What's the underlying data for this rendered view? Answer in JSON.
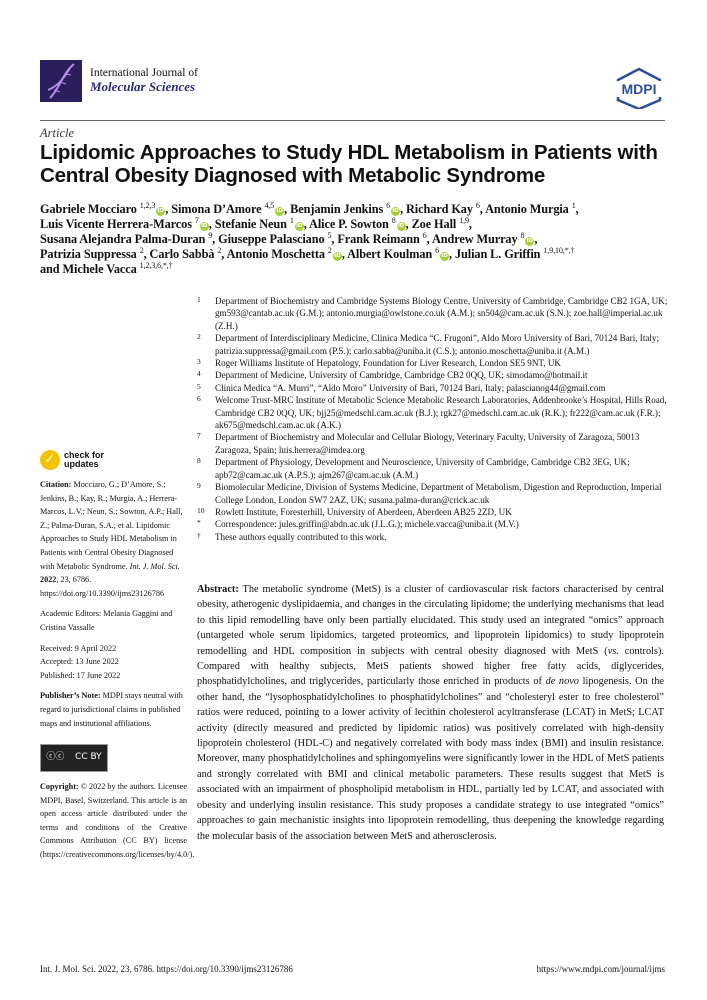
{
  "header": {
    "journal_line1": "International Journal of",
    "journal_line2": "Molecular Sciences",
    "publisher_logo": "MDPI",
    "brand_color": "#2a1f5c"
  },
  "article_type": "Article",
  "title": "Lipidomic Approaches to Study HDL Metabolism in Patients with Central Obesity Diagnosed with Metabolic Syndrome",
  "authors": [
    {
      "name": "Gabriele Mocciaro",
      "sup": "1,2,3",
      "orcid": true
    },
    {
      "name": "Simona D’Amore",
      "sup": "4,5",
      "orcid": true
    },
    {
      "name": "Benjamin Jenkins",
      "sup": "6",
      "orcid": true
    },
    {
      "name": "Richard Kay",
      "sup": "6",
      "orcid": false
    },
    {
      "name": "Antonio Murgia",
      "sup": "1",
      "orcid": false,
      "br": true
    },
    {
      "name": "Luis Vicente Herrera-Marcos",
      "sup": "7",
      "orcid": true
    },
    {
      "name": "Stefanie Neun",
      "sup": "1",
      "orcid": true
    },
    {
      "name": "Alice P. Sowton",
      "sup": "8",
      "orcid": true
    },
    {
      "name": "Zoe Hall",
      "sup": "1,9",
      "orcid": false,
      "br": true
    },
    {
      "name": "Susana Alejandra Palma-Duran",
      "sup": "9",
      "orcid": false
    },
    {
      "name": "Giuseppe Palasciano",
      "sup": "5",
      "orcid": false
    },
    {
      "name": "Frank Reimann",
      "sup": "6",
      "orcid": false
    },
    {
      "name": "Andrew Murray",
      "sup": "8",
      "orcid": true,
      "br": true
    },
    {
      "name": "Patrizia Suppressa",
      "sup": "2",
      "orcid": false
    },
    {
      "name": "Carlo Sabbà",
      "sup": "2",
      "orcid": false
    },
    {
      "name": "Antonio Moschetta",
      "sup": "2",
      "orcid": true
    },
    {
      "name": "Albert Koulman",
      "sup": "6",
      "orcid": true
    },
    {
      "name": "Julian L. Griffin",
      "sup": "1,9,10,*,†",
      "orcid": false,
      "br": true
    },
    {
      "name": "Michele Vacca",
      "sup": "1,2,3,6,*,†",
      "orcid": false,
      "last": true
    }
  ],
  "affiliations": [
    {
      "num": "1",
      "text": "Department of Biochemistry and Cambridge Systems Biology Centre, University of Cambridge, Cambridge CB2 1GA, UK; gm593@cantab.ac.uk (G.M.); antonio.murgia@owlstone.co.uk (A.M.); sn504@cam.ac.uk (S.N.); zoe.hall@imperial.ac.uk (Z.H.)"
    },
    {
      "num": "2",
      "text": "Department of Interdisciplinary Medicine, Clinica Medica “C. Frugoni”, Aldo Moro University of Bari, 70124 Bari, Italy; patrizia.suppressa@gmail.com (P.S.); carlo.sabba@uniba.it (C.S.); antonio.moschetta@uniba.it (A.M.)"
    },
    {
      "num": "3",
      "text": "Roger Williams Institute of Hepatology, Foundation for Liver Research, London SE5 9NT, UK"
    },
    {
      "num": "4",
      "text": "Department of Medicine, University of Cambridge, Cambridge CB2 0QQ, UK; simodamo@hotmail.it"
    },
    {
      "num": "5",
      "text": "Clinica Medica “A. Murri”, “Aldo Moro” University of Bari, 70124 Bari, Italy; palascianog44@gmail.com"
    },
    {
      "num": "6",
      "text": "Welcome Trust-MRC Institute of Metabolic Science Metabolic Research Laboratories, Addenbrooke’s Hospital, Hills Road, Cambridge CB2 0QQ, UK; bjj25@medschl.cam.ac.uk (B.J.); rgk27@medschl.cam.ac.uk (R.K.); fr222@cam.ac.uk (F.R.); ak675@medschl.cam.ac.uk (A.K.)"
    },
    {
      "num": "7",
      "text": "Department of Biochemistry and Molecular and Cellular Biology, Veterinary Faculty, University of Zaragoza, 50013 Zaragoza, Spain; luis.herrera@imdea.org"
    },
    {
      "num": "8",
      "text": "Department of Physiology, Development and Neuroscience, University of Cambridge, Cambridge CB2 3EG, UK; apb72@cam.ac.uk (A.P.S.); ajm267@cam.ac.uk (A.M.)"
    },
    {
      "num": "9",
      "text": "Biomolecular Medicine, Division of Systems Medicine, Department of Metabolism, Digestion and Reproduction, Imperial College London, London SW7 2AZ, UK; susana.palma-duran@crick.ac.uk"
    },
    {
      "num": "10",
      "text": "Rowlett Institute, Foresterhill, University of Aberdeen, Aberdeen AB25 2ZD, UK"
    },
    {
      "num": "*",
      "text": "Correspondence: jules.griffin@abdn.ac.uk (J.L.G.); michele.vacca@uniba.it (M.V.)"
    },
    {
      "num": "†",
      "text": "These authors equally contributed to this work."
    }
  ],
  "sidebar": {
    "check_updates": [
      "check for",
      "updates"
    ],
    "citation": [
      {
        "t": "Citation:",
        "b": true
      },
      {
        "t": " Mocciaro, G.; D’Amore, S.; Jenkins, B.; Kay, R.; Murgia, A.; Herrera-Marcos, L.V.; Neun, S.; Sowton, A.P.; Hall, Z.; Palma-Duran, S.A.; et al. Lipidomic Approaches to Study HDL Metabolism in Patients with Central Obesity Diagnosed with Metabolic Syndrome. "
      },
      {
        "t": "Int. J. Mol. Sci.",
        "i": true
      },
      {
        "t": " "
      },
      {
        "t": "2022",
        "b": true
      },
      {
        "t": ", 23, 6786. https://doi.org/10.3390/ijms23126786"
      }
    ],
    "editors": "Academic Editors: Melania Gaggini and Cristina Vassalle",
    "received": "Received: 9 April 2022",
    "accepted": "Accepted: 13 June 2022",
    "published": "Published: 17 June 2022",
    "publishers_note_label": "Publisher’s Note:",
    "publishers_note": " MDPI stays neutral with regard to jurisdictional claims in published maps and institutional affiliations.",
    "cc_badge": "CC BY",
    "copyright_label": "Copyright:",
    "copyright": " © 2022 by the authors. Licensee MDPI, Basel, Switzerland. This article is an open access article distributed under the terms and conditions of the Creative Commons Attribution (CC BY) license (https://creativecommons.org/licenses/by/4.0/)."
  },
  "abstract": [
    {
      "t": "Abstract:",
      "b": true
    },
    {
      "t": " The metabolic syndrome (MetS) is a cluster of cardiovascular risk factors characterised by central obesity, atherogenic dyslipidaemia, and changes in the circulating lipidome; the underlying mechanisms that lead to this lipid remodelling have only been partially elucidated. This study used an integrated “omics” approach (untargeted whole serum lipidomics, targeted proteomics, and lipoprotein lipidomics) to study lipoprotein remodelling and HDL composition in subjects with central obesity diagnosed with MetS ("
    },
    {
      "t": "vs.",
      "i": true
    },
    {
      "t": " controls). Compared with healthy subjects, MetS patients showed higher free fatty acids, diglycerides, phosphatidylcholines, and triglycerides, particularly those enriched in products of "
    },
    {
      "t": "de novo",
      "i": true
    },
    {
      "t": " lipogenesis. On the other hand, the “lysophosphatidylcholines to phosphatidylcholines” and “cholesteryl ester to free cholesterol” ratios were reduced, pointing to a lower activity of lecithin cholesterol acyltransferase (LCAT) in MetS; LCAT activity (directly measured and predicted by lipidomic ratios) was positively correlated with high-density lipoprotein cholesterol (HDL-C) and negatively correlated with body mass index (BMI) and insulin resistance. Moreover, many phosphatidylcholines and sphingomyelins were significantly lower in the HDL of MetS patients and strongly correlated with BMI and clinical metabolic parameters. These results suggest that MetS is associated with an impairment of phospholipid metabolism in HDL, partially led by LCAT, and associated with obesity and underlying insulin resistance. This study proposes a candidate strategy to use integrated “omics” approaches to gain mechanistic insights into lipoprotein remodelling, thus deepening the knowledge regarding the molecular basis of the association between MetS and atherosclerosis."
    }
  ],
  "footer": {
    "left": "Int. J. Mol. Sci. 2022, 23, 6786. https://doi.org/10.3390/ijms23126786",
    "right": "https://www.mdpi.com/journal/ijms"
  }
}
